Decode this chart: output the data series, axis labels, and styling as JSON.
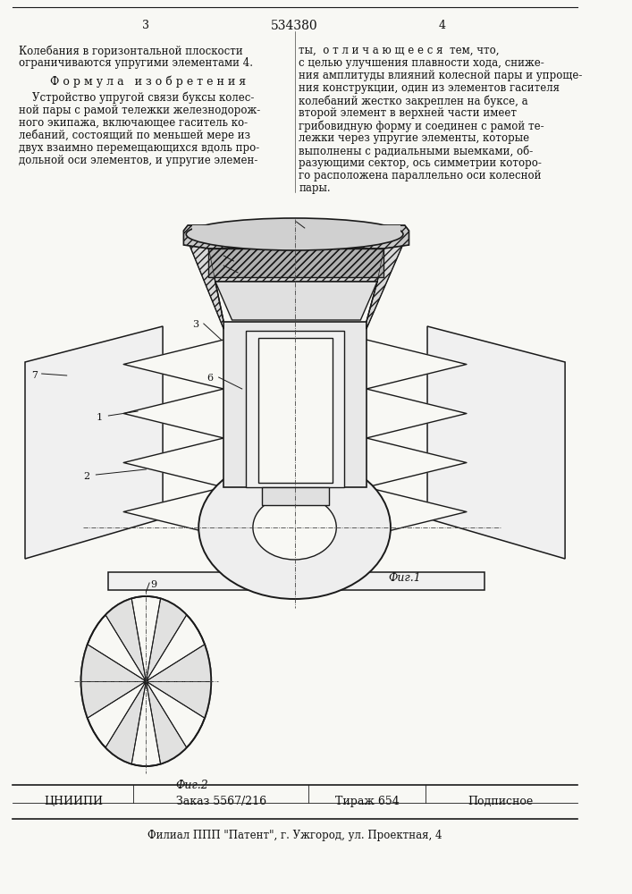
{
  "patent_number": "534380",
  "bg_color": "#f8f8f4",
  "line_color": "#1a1a1a",
  "text_color": "#111111",
  "hatch_color": "#555555",
  "fig1_label": "Фиг.1",
  "fig2_label": "Фиг.2",
  "footer_org": "ЦНИИПИ",
  "footer_order": "Заказ 5567/216",
  "footer_tirazh": "Тираж 654",
  "footer_sub": "Подписное",
  "footer_addr": "Филиал ППП \"Патент\", г. Ужгород, ул. Проектная, 4"
}
